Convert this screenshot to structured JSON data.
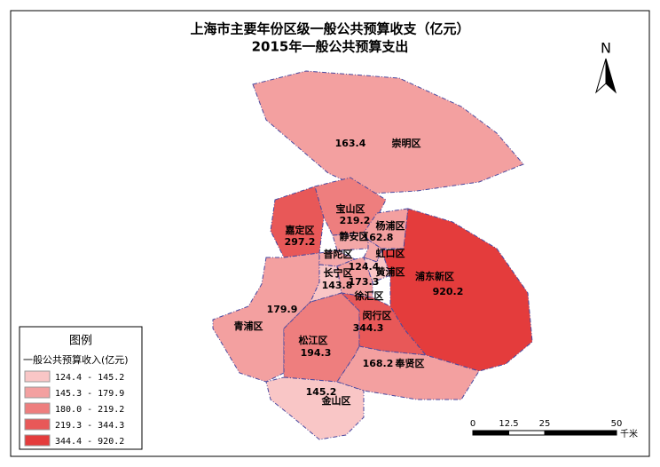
{
  "title": "上海市主要年份区级一般公共预算收支（亿元）",
  "subtitle": "2015年一般公共预算支出",
  "north": "N",
  "districts": [
    {
      "name": "崇明区",
      "value": 163.4
    },
    {
      "name": "嘉定区",
      "value": 297.2
    },
    {
      "name": "宝山区",
      "value": 219.2
    },
    {
      "name": "杨浦区",
      "value": 162.8
    },
    {
      "name": "浦东新区",
      "value": 920.2
    },
    {
      "name": "青浦区",
      "value": 179.9
    },
    {
      "name": "松江区",
      "value": 194.3
    },
    {
      "name": "闵行区",
      "value": 344.3
    },
    {
      "name": "奉贤区",
      "value": 168.2
    },
    {
      "name": "金山区",
      "value": 145.2
    },
    {
      "name": "静安区"
    },
    {
      "name": "普陀区"
    },
    {
      "name": "虹口区"
    },
    {
      "name": "长宁区",
      "value": 143.8
    },
    {
      "name": "黄浦区",
      "value": 124.4
    },
    {
      "name": "徐汇区",
      "value": 173.3
    }
  ],
  "legend": {
    "title": "图例",
    "subtitle": "一般公共预算收入(亿元)",
    "classes": [
      {
        "label": "124.4 - 145.2",
        "color": "#f9c6c6"
      },
      {
        "label": "145.3 - 179.9",
        "color": "#f3a0a0"
      },
      {
        "label": "180.0 - 219.2",
        "color": "#ee7e7e"
      },
      {
        "label": "219.3 - 344.3",
        "color": "#e85858"
      },
      {
        "label": "344.4 - 920.2",
        "color": "#e43c3c"
      }
    ]
  },
  "scale": {
    "ticks": [
      0,
      12.5,
      25,
      50
    ],
    "unit": "千米"
  }
}
